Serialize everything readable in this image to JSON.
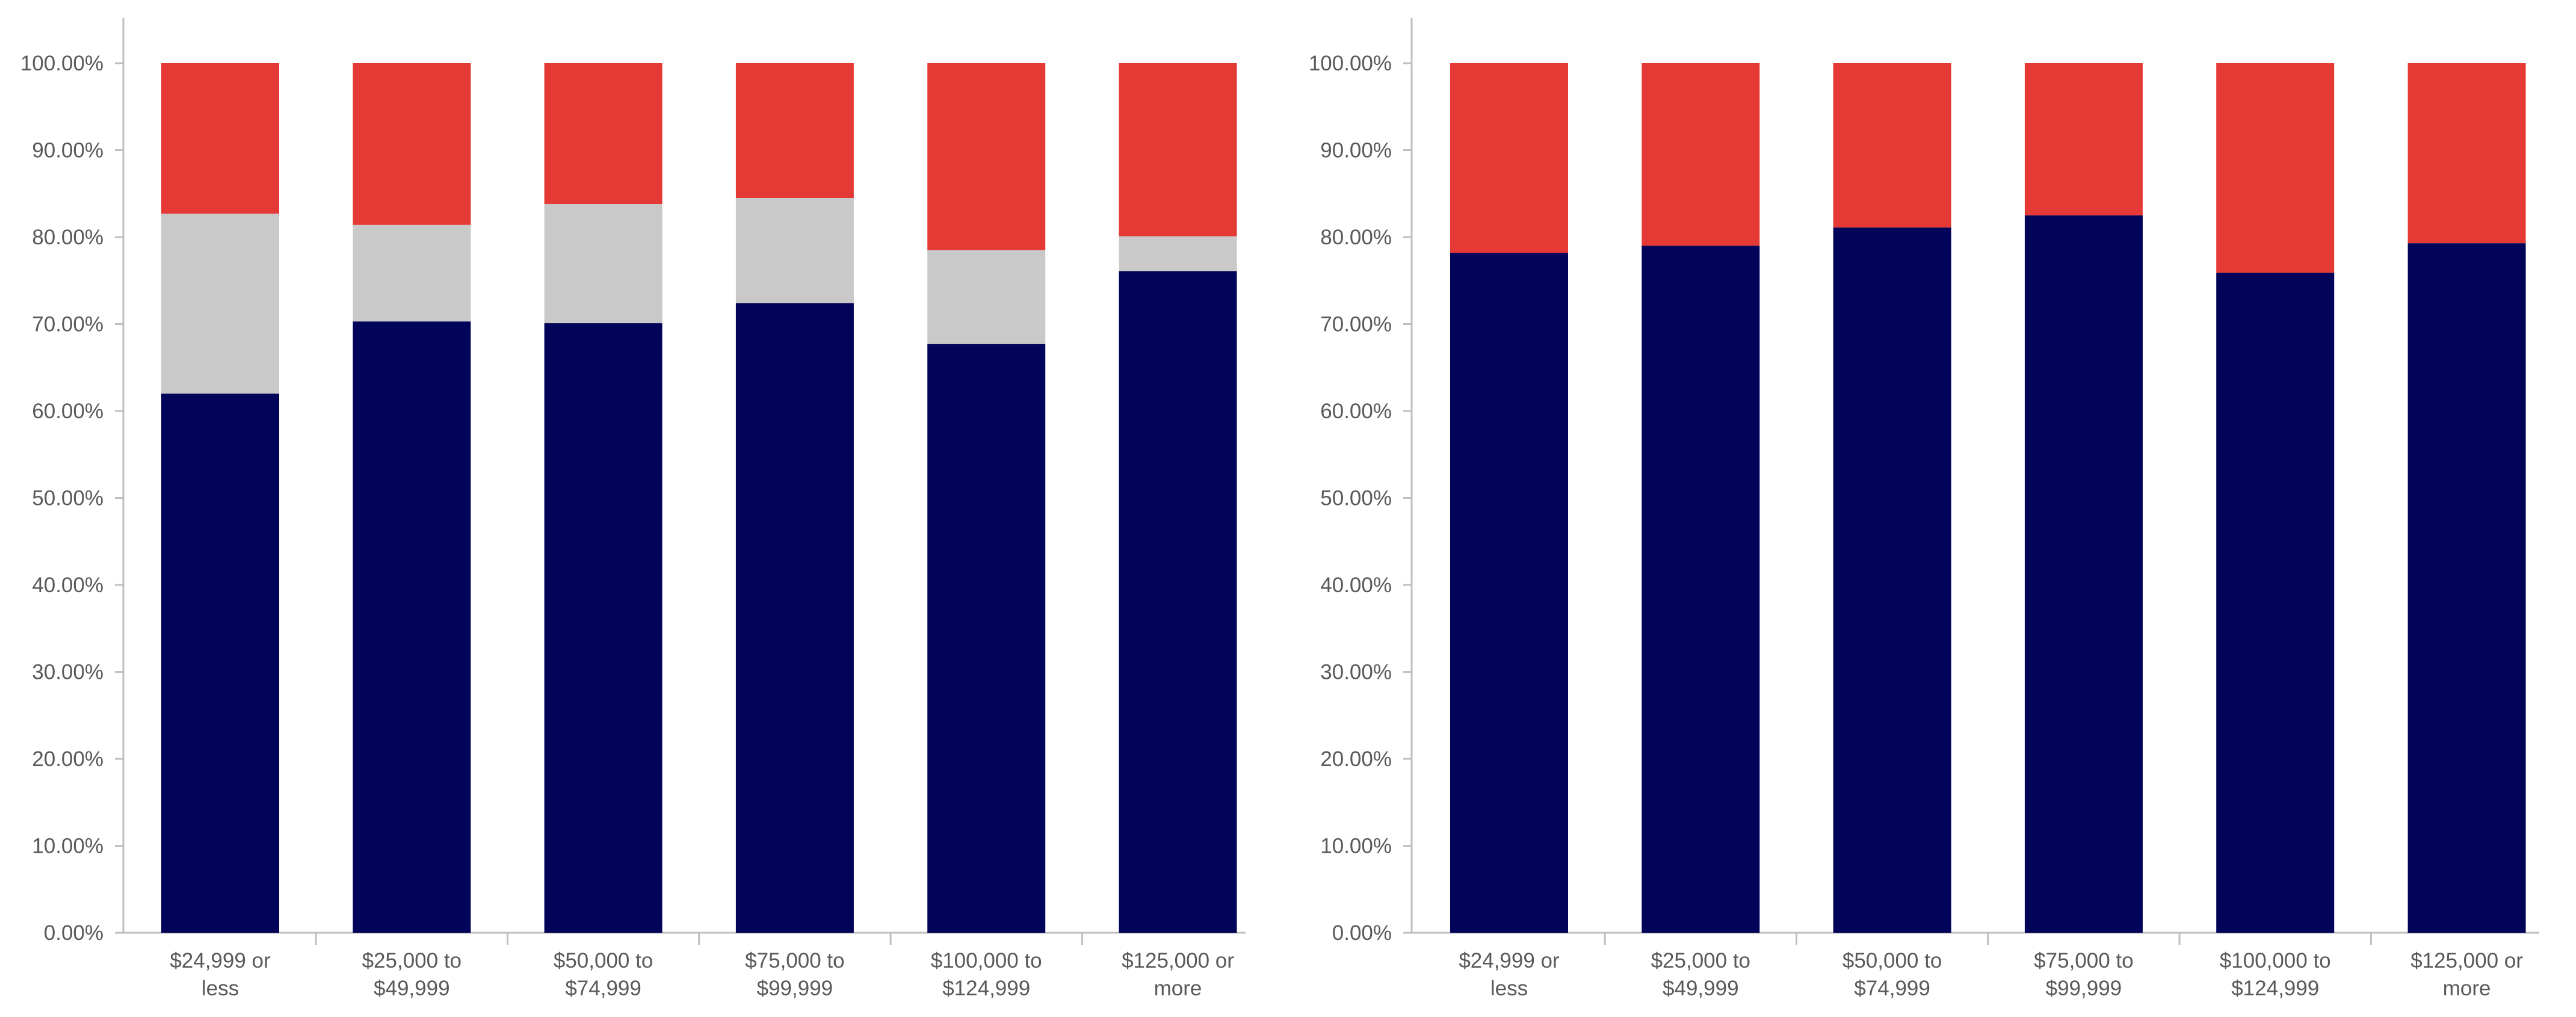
{
  "chart_data": [
    {
      "type": "bar",
      "stacked": true,
      "title": "",
      "xlabel": "",
      "ylabel": "",
      "ylim": [
        0,
        100
      ],
      "yticks": [
        "0.00%",
        "10.00%",
        "20.00%",
        "30.00%",
        "40.00%",
        "50.00%",
        "60.00%",
        "70.00%",
        "80.00%",
        "90.00%",
        "100.00%"
      ],
      "categories": [
        [
          "$24,999 or",
          "less"
        ],
        [
          "$25,000 to",
          "$49,999"
        ],
        [
          "$50,000 to",
          "$74,999"
        ],
        [
          "$75,000 to",
          "$99,999"
        ],
        [
          "$100,000 to",
          "$124,999"
        ],
        [
          "$125,000 or",
          "more"
        ]
      ],
      "series": [
        {
          "name": "navy",
          "color": "#02045a",
          "values": [
            62.0,
            70.3,
            70.1,
            72.4,
            67.7,
            76.1
          ]
        },
        {
          "name": "gray",
          "color": "#c9c9c9",
          "values": [
            20.7,
            11.1,
            13.7,
            12.1,
            10.8,
            4.0
          ]
        },
        {
          "name": "red",
          "color": "#e53935",
          "values": [
            17.3,
            18.6,
            16.2,
            15.5,
            21.5,
            19.9
          ]
        }
      ]
    },
    {
      "type": "bar",
      "stacked": true,
      "title": "",
      "xlabel": "",
      "ylabel": "",
      "ylim": [
        0,
        100
      ],
      "yticks": [
        "0.00%",
        "10.00%",
        "20.00%",
        "30.00%",
        "40.00%",
        "50.00%",
        "60.00%",
        "70.00%",
        "80.00%",
        "90.00%",
        "100.00%"
      ],
      "categories": [
        [
          "$24,999 or",
          "less"
        ],
        [
          "$25,000 to",
          "$49,999"
        ],
        [
          "$50,000 to",
          "$74,999"
        ],
        [
          "$75,000 to",
          "$99,999"
        ],
        [
          "$100,000 to",
          "$124,999"
        ],
        [
          "$125,000 or",
          "more"
        ]
      ],
      "series": [
        {
          "name": "navy",
          "color": "#02045a",
          "values": [
            78.2,
            79.0,
            81.1,
            82.5,
            75.9,
            79.3
          ]
        },
        {
          "name": "red",
          "color": "#e53935",
          "values": [
            21.8,
            21.0,
            18.9,
            17.5,
            24.1,
            20.7
          ]
        }
      ]
    }
  ]
}
